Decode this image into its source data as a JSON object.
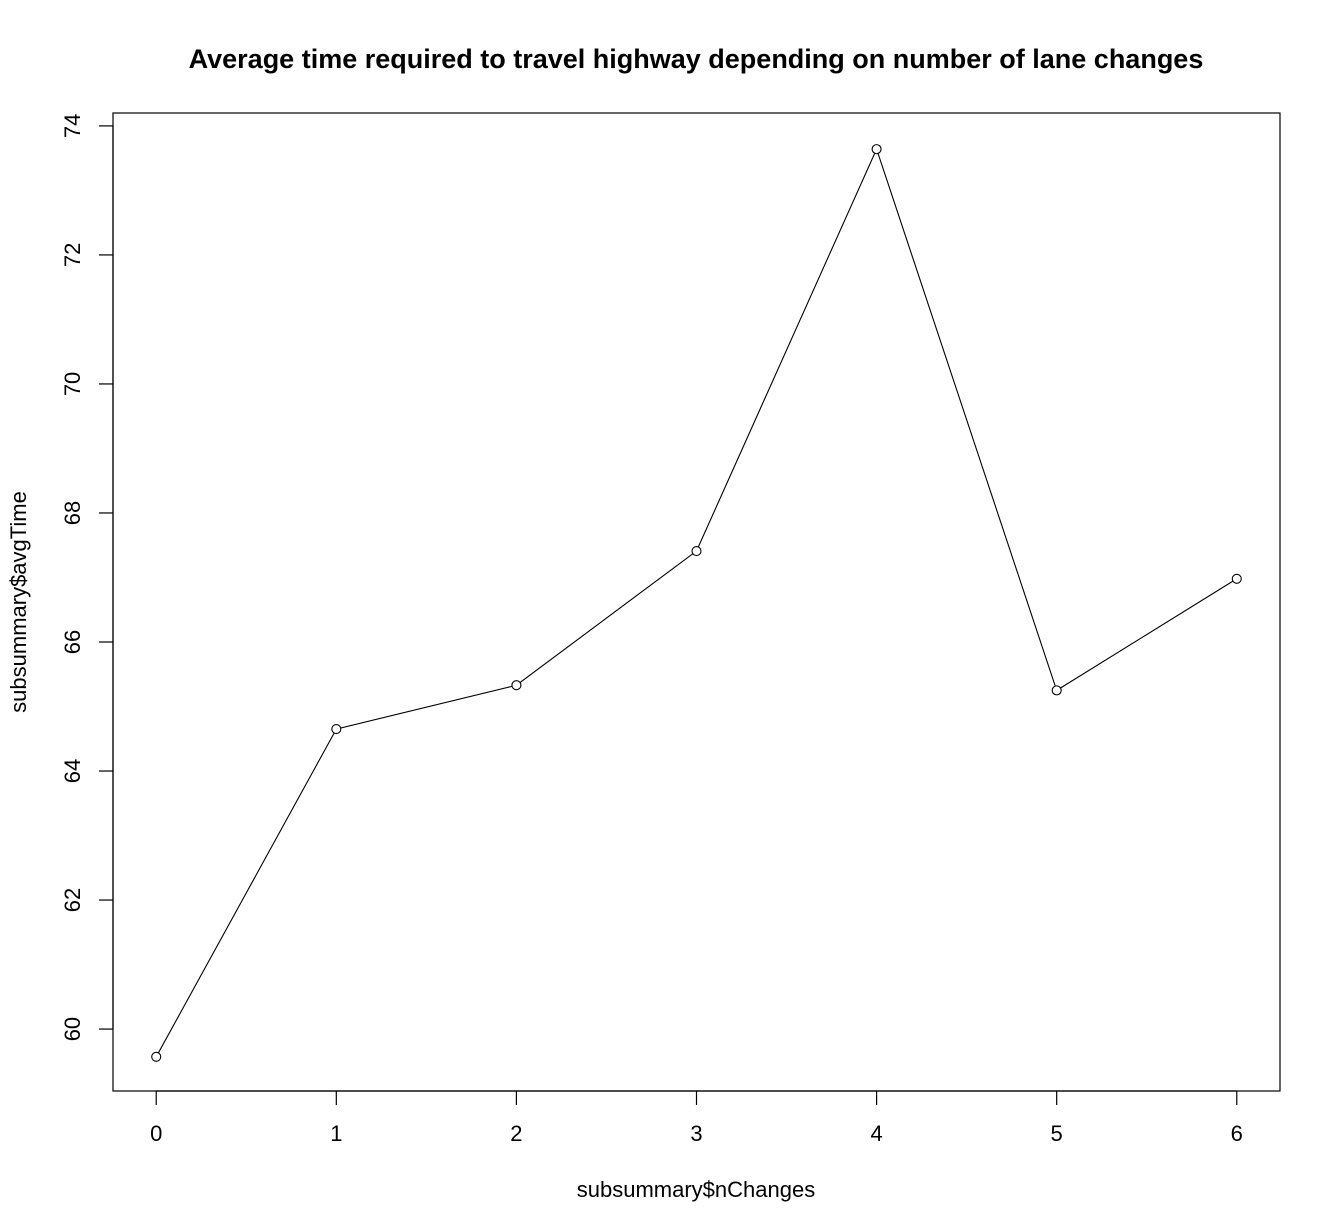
{
  "chart_data": {
    "type": "line",
    "title": "Average time required to travel highway depending on number of lane changes",
    "xlabel": "subsummary$nChanges",
    "ylabel": "subsummary$avgTime",
    "x": [
      0,
      1,
      2,
      3,
      4,
      5,
      6
    ],
    "series": [
      {
        "values": [
          59.57,
          64.65,
          65.33,
          67.41,
          73.64,
          65.25,
          66.98
        ],
        "marker": "open-circle",
        "line": true,
        "color": "#000000"
      }
    ],
    "x_ticks": [
      0,
      1,
      2,
      3,
      4,
      5,
      6
    ],
    "y_ticks": [
      60,
      62,
      64,
      66,
      68,
      70,
      72,
      74
    ],
    "xlim": [
      -0.24,
      6.24
    ],
    "ylim": [
      59.04,
      74.2
    ],
    "grid": false,
    "legend": "none"
  }
}
